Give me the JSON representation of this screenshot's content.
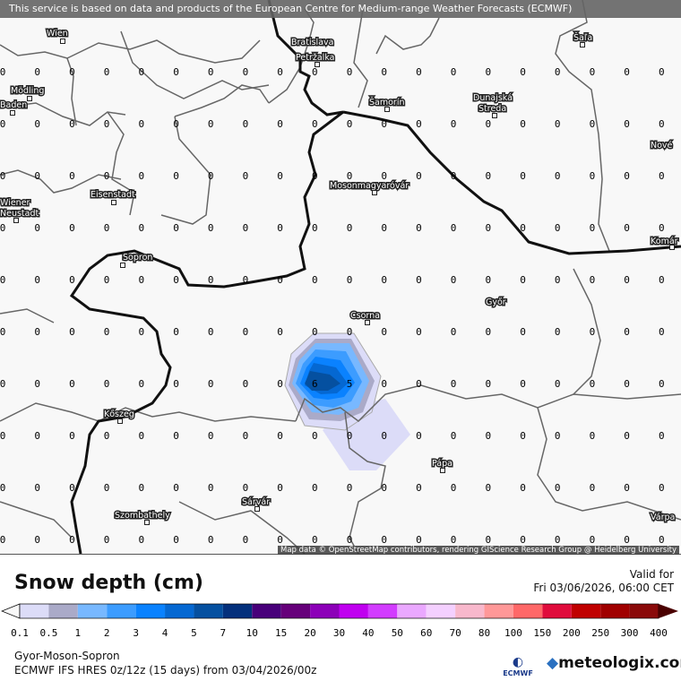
{
  "banner": "This service is based on data and products of the European Centre for Medium-range Weather Forecasts (ECMWF)",
  "attribution": "Map data © OpenStreetMap contributors, rendering GIScience Research Group @ Heidelberg University",
  "legend": {
    "title": "Snow depth (cm)",
    "valid_label": "Valid for",
    "valid_time": "Fri 03/06/2026, 06:00 CET",
    "ticks": [
      "0.1",
      "0.5",
      "1",
      "2",
      "3",
      "4",
      "5",
      "7",
      "10",
      "15",
      "20",
      "30",
      "40",
      "50",
      "60",
      "70",
      "80",
      "100",
      "150",
      "200",
      "250",
      "300",
      "400"
    ],
    "colors": [
      "#dcdcf8",
      "#aaaac8",
      "#78b8ff",
      "#3c9cff",
      "#0a82ff",
      "#0568d2",
      "#0550a0",
      "#04307c",
      "#48007a",
      "#66007a",
      "#8c00b8",
      "#c000f0",
      "#d23cff",
      "#eaa8ff",
      "#f4d0ff",
      "#f8b8cc",
      "#ff9898",
      "#ff6868",
      "#e00c3c",
      "#c00000",
      "#a00000",
      "#8a0a0a"
    ],
    "under_color": "#f8f8f8",
    "over_color": "#4a0000"
  },
  "footer": {
    "region": "Gyor-Moson-Sopron",
    "model": "ECMWF IFS HRES 0z/12z (15 days) from  03/04/2026/00z",
    "ecmwf_logo": "ECMWF",
    "brand": "meteologix.com"
  },
  "cities": [
    {
      "name": "Wien"
    },
    {
      "name": "Bratislava"
    },
    {
      "name": "Petržalka"
    },
    {
      "name": "Mödling"
    },
    {
      "name": "Baden"
    },
    {
      "name": "Šamorín"
    },
    {
      "name": "Dunajská"
    },
    {
      "name": "Streda"
    },
    {
      "name": "Šaľa"
    },
    {
      "name": "Nové"
    },
    {
      "name": "Eisenstadt"
    },
    {
      "name": "Wiener"
    },
    {
      "name": "Neustadt"
    },
    {
      "name": "Mosonmagyaróvár"
    },
    {
      "name": "Sopron"
    },
    {
      "name": "Csorna"
    },
    {
      "name": "Győr"
    },
    {
      "name": "Komár"
    },
    {
      "name": "Kőszeg"
    },
    {
      "name": "Pápa"
    },
    {
      "name": "Sárvár"
    },
    {
      "name": "Szombathely"
    },
    {
      "name": "Várpa"
    }
  ],
  "grid_values": {
    "default": "0",
    "peak": [
      {
        "row": 7,
        "col": 9,
        "value": "6"
      },
      {
        "row": 7,
        "col": 10,
        "value": "5"
      }
    ]
  }
}
